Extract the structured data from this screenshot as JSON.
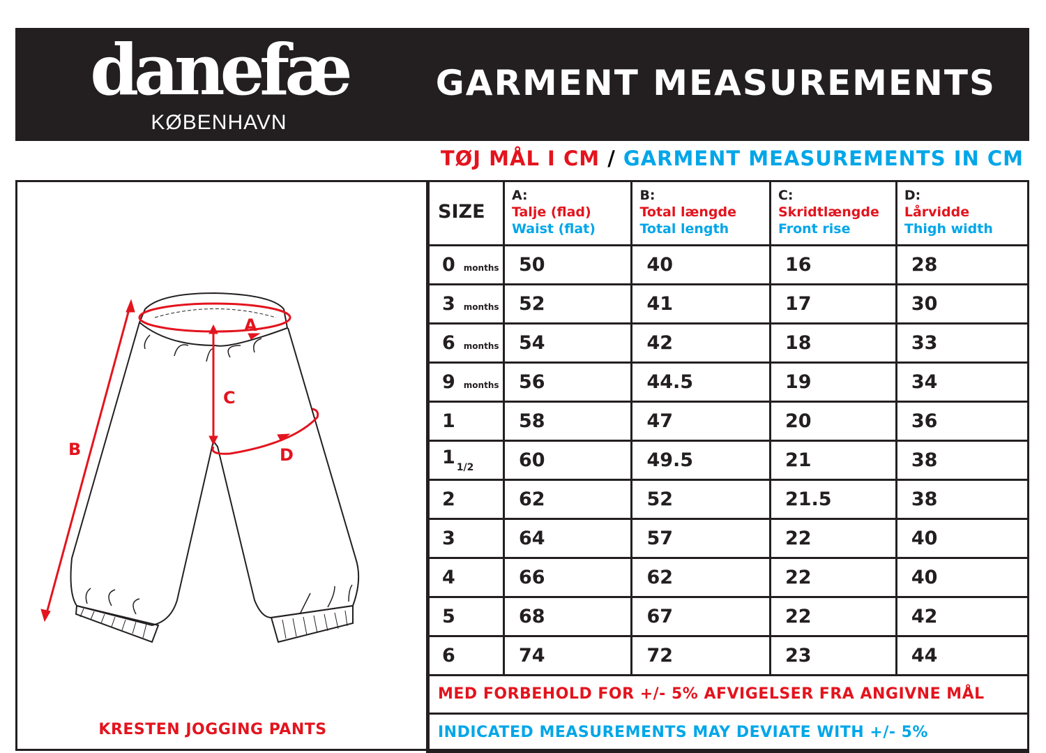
{
  "header": {
    "logo_word": "danefæ",
    "logo_city": "KØBENHAVN",
    "title": "GARMENT MEASUREMENTS"
  },
  "subtitle": {
    "danish": "TØJ MÅL I CM",
    "separator": "/",
    "english": "GARMENT MEASUREMENTS IN CM"
  },
  "colors": {
    "red": "#e3141e",
    "blue": "#00a6e8",
    "dark": "#231f20"
  },
  "diagram": {
    "product_name": "KRESTEN JOGGING PANTS",
    "labels": {
      "a": "A",
      "b": "B",
      "c": "C",
      "d": "D"
    }
  },
  "table": {
    "size_header": "SIZE",
    "columns": [
      {
        "letter": "A:",
        "danish": "Talje (flad)",
        "english": "Waist (flat)"
      },
      {
        "letter": "B:",
        "danish": "Total længde",
        "english": "Total length"
      },
      {
        "letter": "C:",
        "danish": "Skridtlængde",
        "english": "Front rise"
      },
      {
        "letter": "D:",
        "danish": "Lårvidde",
        "english": "Thigh width"
      }
    ],
    "rows": [
      {
        "size": "0",
        "unit": "months",
        "frac": "",
        "a": "50",
        "b": "40",
        "c": "16",
        "d": "28"
      },
      {
        "size": "3",
        "unit": "months",
        "frac": "",
        "a": "52",
        "b": "41",
        "c": "17",
        "d": "30"
      },
      {
        "size": "6",
        "unit": "months",
        "frac": "",
        "a": "54",
        "b": "42",
        "c": "18",
        "d": "33"
      },
      {
        "size": "9",
        "unit": "months",
        "frac": "",
        "a": "56",
        "b": "44.5",
        "c": "19",
        "d": "34"
      },
      {
        "size": "1",
        "unit": "",
        "frac": "",
        "a": "58",
        "b": "47",
        "c": "20",
        "d": "36"
      },
      {
        "size": "1",
        "unit": "",
        "frac": "1/2",
        "a": "60",
        "b": "49.5",
        "c": "21",
        "d": "38"
      },
      {
        "size": "2",
        "unit": "",
        "frac": "",
        "a": "62",
        "b": "52",
        "c": "21.5",
        "d": "38"
      },
      {
        "size": "3",
        "unit": "",
        "frac": "",
        "a": "64",
        "b": "57",
        "c": "22",
        "d": "40"
      },
      {
        "size": "4",
        "unit": "",
        "frac": "",
        "a": "66",
        "b": "62",
        "c": "22",
        "d": "40"
      },
      {
        "size": "5",
        "unit": "",
        "frac": "",
        "a": "68",
        "b": "67",
        "c": "22",
        "d": "42"
      },
      {
        "size": "6",
        "unit": "",
        "frac": "",
        "a": "74",
        "b": "72",
        "c": "23",
        "d": "44"
      }
    ],
    "note_danish": "MED FORBEHOLD FOR +/- 5% AFVIGELSER FRA ANGIVNE MÅL",
    "note_english": "INDICATED MEASUREMENTS MAY DEVIATE WITH +/- 5%"
  }
}
